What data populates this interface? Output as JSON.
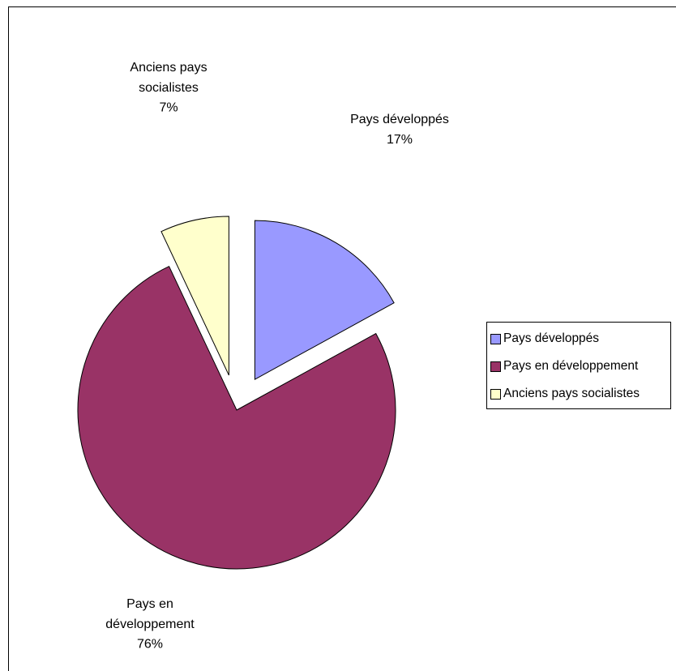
{
  "chart_data": {
    "type": "pie",
    "title": "",
    "exploded": true,
    "categories": [
      "Pays développés",
      "Pays en développement",
      "Anciens pays socialistes"
    ],
    "values": [
      17,
      76,
      7
    ],
    "unit": "%",
    "colors": [
      "#9999ff",
      "#993366",
      "#ffffcc"
    ],
    "data_labels": [
      {
        "lines": [
          "Pays développés",
          "17%"
        ]
      },
      {
        "lines": [
          "Pays en",
          "développement",
          "76%"
        ]
      },
      {
        "lines": [
          "Anciens pays",
          "socialistes",
          "7%"
        ]
      }
    ],
    "legend": {
      "position": "right",
      "entries": [
        "Pays développés",
        "Pays en développement",
        "Anciens pays socialistes"
      ]
    }
  }
}
